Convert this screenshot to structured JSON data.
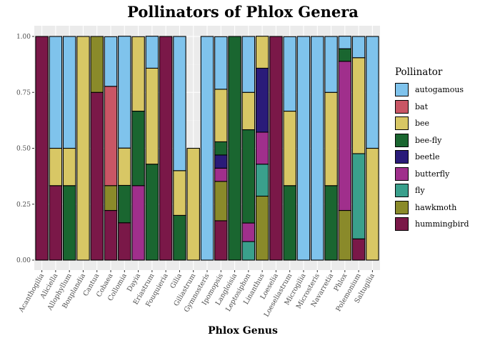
{
  "chart_data": {
    "type": "bar",
    "stacked": true,
    "title": "Pollinators of Phlox Genera",
    "xlabel": "Phlox Genus",
    "ylabel": "",
    "ylim": [
      0,
      1
    ],
    "yticks": [
      "0.00",
      "0.25",
      "0.50",
      "0.75",
      "1.00"
    ],
    "grid": true,
    "legend_position": "right",
    "legend_title": "Pollinator",
    "categories": [
      "Acanthogilia",
      "Aliciella",
      "Allophyllum",
      "Bonplandia",
      "Cantua",
      "Cobaea",
      "Collomia",
      "Dayia",
      "Eriastrum",
      "Fouquieria",
      "Gilia",
      "Giliastrum",
      "Gymnosteris",
      "Ipomopsis",
      "Langloisia",
      "Leptosiphon",
      "Linanthus",
      "Loeselia",
      "Loeseliastrum",
      "Microgilia",
      "Microsteris",
      "Navarretia",
      "Phlox",
      "Polemonium",
      "Saltugilia"
    ],
    "series": [
      {
        "name": "autogamous",
        "color": "#7fc3ec",
        "values": [
          0,
          0.5,
          0.5,
          0,
          0,
          0.222,
          0.5,
          0,
          0.143,
          0,
          0.6,
          0,
          1,
          0.235,
          0,
          0.25,
          0,
          0,
          0.333,
          1,
          1,
          0.25,
          0.056,
          0.095,
          0.5
        ]
      },
      {
        "name": "bat",
        "color": "#c95665",
        "values": [
          0,
          0,
          0,
          0,
          0,
          0.444,
          0,
          0,
          0,
          0,
          0,
          0,
          0,
          0,
          0,
          0,
          0,
          0,
          0,
          0,
          0,
          0,
          0,
          0,
          0
        ]
      },
      {
        "name": "bee",
        "color": "#d8c765",
        "values": [
          0,
          0.167,
          0.167,
          1,
          0,
          0,
          0.167,
          0.333,
          0.429,
          0,
          0.2,
          0.5,
          0,
          0.235,
          0,
          0.167,
          0.143,
          0,
          0.333,
          0,
          0,
          0.417,
          0,
          0.429,
          0.5
        ]
      },
      {
        "name": "bee-fly",
        "color": "#1a6630",
        "values": [
          0,
          0,
          0.333,
          0,
          0,
          0,
          0.167,
          0.333,
          0.429,
          0,
          0.2,
          0,
          0,
          0.059,
          1,
          0.417,
          0,
          0,
          0.333,
          0,
          0,
          0.333,
          0.056,
          0,
          0
        ]
      },
      {
        "name": "beetle",
        "color": "#2a1b79",
        "values": [
          0,
          0,
          0,
          0,
          0,
          0,
          0,
          0,
          0,
          0,
          0,
          0,
          0,
          0.059,
          0,
          0,
          0.286,
          0,
          0,
          0,
          0,
          0,
          0,
          0,
          0
        ]
      },
      {
        "name": "butterfly",
        "color": "#a02f8c",
        "values": [
          0,
          0,
          0,
          0,
          0,
          0,
          0,
          0.333,
          0,
          0,
          0,
          0,
          0,
          0.059,
          0,
          0.083,
          0.143,
          0,
          0,
          0,
          0,
          0,
          0.667,
          0,
          0
        ]
      },
      {
        "name": "fly",
        "color": "#3aa08c",
        "values": [
          0,
          0,
          0,
          0,
          0,
          0,
          0,
          0,
          0,
          0,
          0,
          0,
          0,
          0,
          0,
          0.083,
          0.143,
          0,
          0,
          0,
          0,
          0,
          0,
          0.381,
          0
        ]
      },
      {
        "name": "hawkmoth",
        "color": "#8a8a2a",
        "values": [
          0,
          0,
          0,
          0,
          0.25,
          0.111,
          0,
          0,
          0,
          0,
          0,
          0,
          0,
          0.176,
          0,
          0,
          0.286,
          0,
          0,
          0,
          0,
          0,
          0.222,
          0,
          0
        ]
      },
      {
        "name": "hummingbird",
        "color": "#7a1848",
        "values": [
          1,
          0.333,
          0,
          0,
          0.75,
          0.222,
          0.167,
          0,
          0,
          1,
          0,
          0,
          0,
          0.176,
          0,
          0,
          0,
          1,
          0,
          0,
          0,
          0,
          0,
          0.095,
          0
        ]
      }
    ]
  }
}
